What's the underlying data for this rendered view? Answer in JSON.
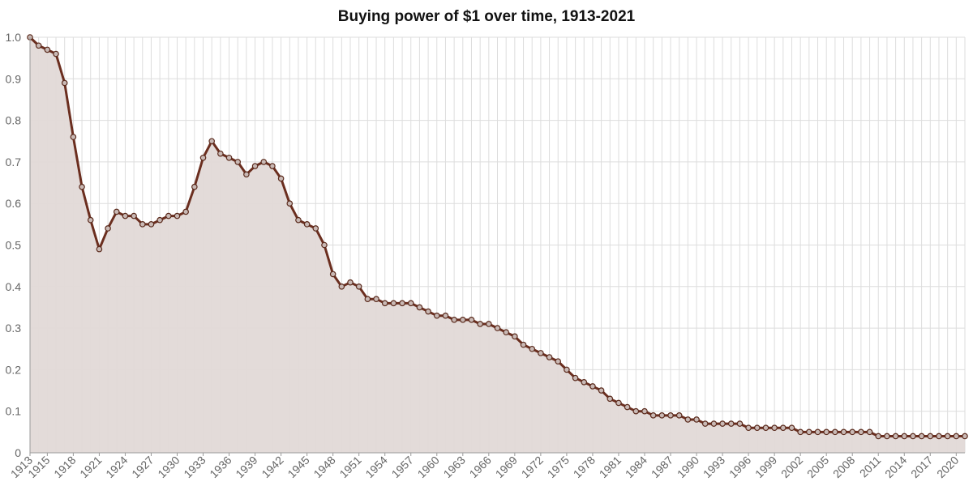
{
  "chart_data": {
    "type": "area",
    "title": "Buying power of $1 over time, 1913-2021",
    "xlabel": "",
    "ylabel": "",
    "ylim": [
      0,
      1.0
    ],
    "y_ticks": [
      "0",
      "0.1",
      "0.2",
      "0.3",
      "0.4",
      "0.5",
      "0.6",
      "0.7",
      "0.8",
      "0.9",
      "1.0"
    ],
    "x_tick_labels": [
      "1913",
      "1915",
      "1918",
      "1921",
      "1924",
      "1927",
      "1930",
      "1933",
      "1936",
      "1939",
      "1942",
      "1945",
      "1948",
      "1951",
      "1954",
      "1957",
      "1960",
      "1963",
      "1966",
      "1969",
      "1972",
      "1975",
      "1978",
      "1981",
      "1984",
      "1987",
      "1990",
      "1993",
      "1996",
      "1999",
      "2002",
      "2005",
      "2008",
      "2011",
      "2014",
      "2017",
      "2020"
    ],
    "grid": true,
    "colors": {
      "line": "#6b2e1f",
      "fill": "#e2d9d7",
      "grid": "#dddddd"
    },
    "series": [
      {
        "x": [
          1913,
          1914,
          1915,
          1916,
          1917,
          1918,
          1919,
          1920,
          1921,
          1922,
          1923,
          1924,
          1925,
          1926,
          1927,
          1928,
          1929,
          1930,
          1931,
          1932,
          1933,
          1934,
          1935,
          1936,
          1937,
          1938,
          1939,
          1940,
          1941,
          1942,
          1943,
          1944,
          1945,
          1946,
          1947,
          1948,
          1949,
          1950,
          1951,
          1952,
          1953,
          1954,
          1955,
          1956,
          1957,
          1958,
          1959,
          1960,
          1961,
          1962,
          1963,
          1964,
          1965,
          1966,
          1967,
          1968,
          1969,
          1970,
          1971,
          1972,
          1973,
          1974,
          1975,
          1976,
          1977,
          1978,
          1979,
          1980,
          1981,
          1982,
          1983,
          1984,
          1985,
          1986,
          1987,
          1988,
          1989,
          1990,
          1991,
          1992,
          1993,
          1994,
          1995,
          1996,
          1997,
          1998,
          1999,
          2000,
          2001,
          2002,
          2003,
          2004,
          2005,
          2006,
          2007,
          2008,
          2009,
          2010,
          2011,
          2012,
          2013,
          2014,
          2015,
          2016,
          2017,
          2018,
          2019,
          2020,
          2021
        ],
        "values": [
          1.0,
          0.98,
          0.97,
          0.96,
          0.89,
          0.76,
          0.64,
          0.56,
          0.49,
          0.54,
          0.58,
          0.57,
          0.57,
          0.55,
          0.55,
          0.56,
          0.57,
          0.57,
          0.58,
          0.64,
          0.71,
          0.75,
          0.72,
          0.71,
          0.7,
          0.67,
          0.69,
          0.7,
          0.69,
          0.66,
          0.6,
          0.56,
          0.55,
          0.54,
          0.5,
          0.43,
          0.4,
          0.41,
          0.4,
          0.37,
          0.37,
          0.36,
          0.36,
          0.36,
          0.36,
          0.35,
          0.34,
          0.33,
          0.33,
          0.32,
          0.32,
          0.32,
          0.31,
          0.31,
          0.3,
          0.29,
          0.28,
          0.26,
          0.25,
          0.24,
          0.23,
          0.22,
          0.2,
          0.18,
          0.17,
          0.16,
          0.15,
          0.13,
          0.12,
          0.11,
          0.1,
          0.1,
          0.09,
          0.09,
          0.09,
          0.09,
          0.08,
          0.08,
          0.07,
          0.07,
          0.07,
          0.07,
          0.07,
          0.06,
          0.06,
          0.06,
          0.06,
          0.06,
          0.06,
          0.05,
          0.05,
          0.05,
          0.05,
          0.05,
          0.05,
          0.05,
          0.05,
          0.05,
          0.04,
          0.04,
          0.04,
          0.04,
          0.04,
          0.04,
          0.04,
          0.04,
          0.04,
          0.04,
          0.04
        ]
      }
    ]
  }
}
